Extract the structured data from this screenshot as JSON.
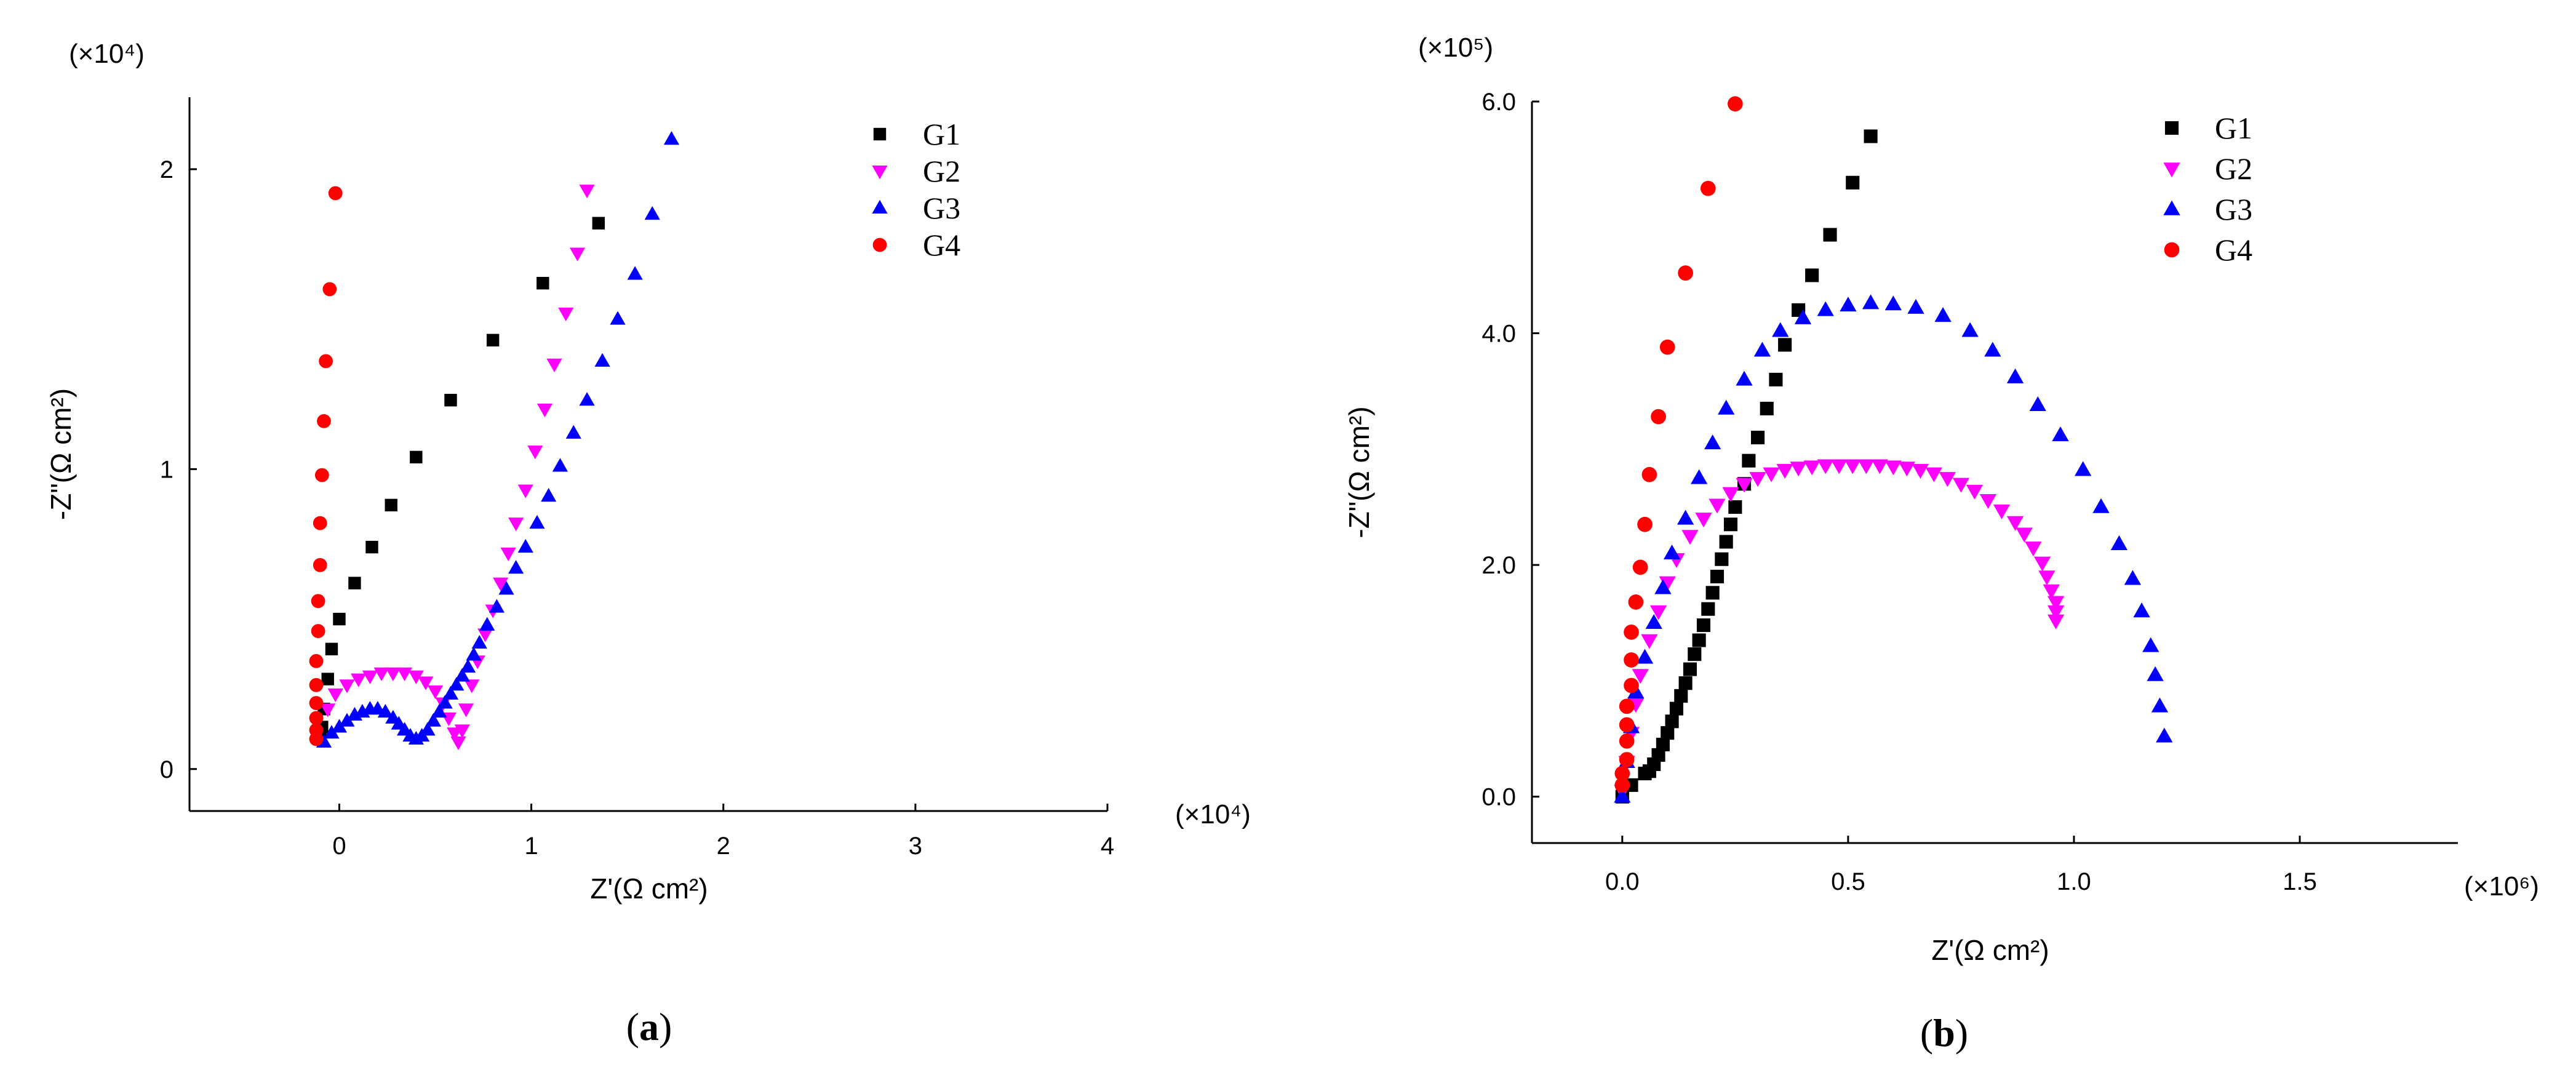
{
  "chart_data": [
    {
      "type": "scatter",
      "title": "",
      "caption": "(a)",
      "caption_letter": "a",
      "xlabel": "Z'(Ω cm²)",
      "ylabel": "-Z\"(Ω cm²)",
      "x_multiplier": "(×10⁴)",
      "y_multiplier": "(×10⁴)",
      "xlim": [
        -0.78,
        4.0
      ],
      "ylim": [
        -0.14,
        2.24
      ],
      "x_ticks": [
        0,
        1,
        2,
        3,
        4
      ],
      "x_tick_labels": [
        "0",
        "1",
        "2",
        "3",
        "4"
      ],
      "y_ticks": [
        0,
        1,
        2
      ],
      "y_tick_labels": [
        "0",
        "1",
        "2"
      ],
      "grid": false,
      "legend_position": "top-right",
      "series": [
        {
          "name": "G1",
          "marker": "square",
          "color": "#000000",
          "x": [
            -0.1,
            -0.09,
            -0.08,
            -0.06,
            -0.04,
            0.0,
            0.08,
            0.17,
            0.27,
            0.4,
            0.58,
            0.8,
            1.06,
            1.35
          ],
          "y": [
            0.1,
            0.14,
            0.2,
            0.3,
            0.4,
            0.5,
            0.62,
            0.74,
            0.88,
            1.04,
            1.23,
            1.43,
            1.62,
            1.82
          ]
        },
        {
          "name": "G2",
          "marker": "triangle-down",
          "color": "#ff00ff",
          "x": [
            -0.06,
            -0.02,
            0.04,
            0.1,
            0.16,
            0.22,
            0.28,
            0.34,
            0.4,
            0.45,
            0.5,
            0.54,
            0.57,
            0.6,
            0.62,
            0.64,
            0.66,
            0.69,
            0.72,
            0.76,
            0.8,
            0.84,
            0.88,
            0.92,
            0.97,
            1.02,
            1.07,
            1.12,
            1.18,
            1.24,
            1.29
          ],
          "y": [
            0.2,
            0.25,
            0.28,
            0.3,
            0.31,
            0.32,
            0.32,
            0.32,
            0.31,
            0.29,
            0.26,
            0.22,
            0.17,
            0.12,
            0.09,
            0.13,
            0.2,
            0.28,
            0.36,
            0.45,
            0.53,
            0.62,
            0.72,
            0.82,
            0.93,
            1.06,
            1.2,
            1.35,
            1.52,
            1.72,
            1.93
          ]
        },
        {
          "name": "G3",
          "marker": "triangle-up",
          "color": "#0000ff",
          "x": [
            -0.08,
            -0.04,
            0.0,
            0.04,
            0.08,
            0.12,
            0.16,
            0.2,
            0.24,
            0.28,
            0.31,
            0.34,
            0.37,
            0.4,
            0.43,
            0.46,
            0.49,
            0.52,
            0.55,
            0.58,
            0.61,
            0.64,
            0.67,
            0.7,
            0.73,
            0.77,
            0.82,
            0.87,
            0.92,
            0.97,
            1.03,
            1.09,
            1.15,
            1.22,
            1.29,
            1.37,
            1.45,
            1.54,
            1.63,
            1.73
          ],
          "y": [
            0.09,
            0.12,
            0.14,
            0.16,
            0.18,
            0.19,
            0.2,
            0.2,
            0.19,
            0.17,
            0.15,
            0.13,
            0.11,
            0.1,
            0.11,
            0.13,
            0.16,
            0.19,
            0.22,
            0.25,
            0.28,
            0.31,
            0.34,
            0.38,
            0.42,
            0.48,
            0.54,
            0.6,
            0.67,
            0.74,
            0.82,
            0.91,
            1.01,
            1.12,
            1.23,
            1.36,
            1.5,
            1.65,
            1.85,
            2.1
          ]
        },
        {
          "name": "G4",
          "marker": "circle",
          "color": "#ff0000",
          "x": [
            -0.12,
            -0.12,
            -0.12,
            -0.12,
            -0.12,
            -0.12,
            -0.11,
            -0.11,
            -0.1,
            -0.1,
            -0.09,
            -0.08,
            -0.07,
            -0.05,
            -0.02
          ],
          "y": [
            0.1,
            0.13,
            0.17,
            0.22,
            0.28,
            0.36,
            0.46,
            0.56,
            0.68,
            0.82,
            0.98,
            1.16,
            1.36,
            1.6,
            1.92
          ]
        }
      ]
    },
    {
      "type": "scatter",
      "title": "",
      "caption": "(b)",
      "caption_letter": "b",
      "xlabel": "Z'(Ω cm²)",
      "ylabel": "-Z\"(Ω cm²)",
      "x_multiplier": "(×10⁶)",
      "y_multiplier": "(×10⁵)",
      "xlim": [
        -0.2,
        1.85
      ],
      "ylim": [
        -0.4,
        6.0
      ],
      "x_ticks": [
        0.0,
        0.5,
        1.0,
        1.5
      ],
      "x_tick_labels": [
        "0.0",
        "0.5",
        "1.0",
        "1.5"
      ],
      "y_ticks": [
        0.0,
        2.0,
        4.0,
        6.0
      ],
      "y_tick_labels": [
        "0.0",
        "2.0",
        "4.0",
        "6.0"
      ],
      "grid": false,
      "legend_position": "top-right",
      "series": [
        {
          "name": "G1",
          "marker": "square",
          "color": "#000000",
          "x": [
            0.0,
            0.02,
            0.05,
            0.06,
            0.07,
            0.08,
            0.09,
            0.1,
            0.11,
            0.12,
            0.13,
            0.14,
            0.15,
            0.16,
            0.17,
            0.18,
            0.19,
            0.2,
            0.21,
            0.22,
            0.23,
            0.24,
            0.25,
            0.27,
            0.28,
            0.3,
            0.32,
            0.34,
            0.36,
            0.39,
            0.42,
            0.46,
            0.51,
            0.55
          ],
          "y": [
            0.0,
            0.1,
            0.2,
            0.22,
            0.28,
            0.36,
            0.45,
            0.55,
            0.65,
            0.76,
            0.87,
            0.98,
            1.1,
            1.23,
            1.35,
            1.48,
            1.62,
            1.76,
            1.9,
            2.05,
            2.2,
            2.35,
            2.5,
            2.7,
            2.9,
            3.1,
            3.35,
            3.6,
            3.9,
            4.2,
            4.5,
            4.85,
            5.3,
            5.7
          ]
        },
        {
          "name": "G2",
          "marker": "triangle-down",
          "color": "#ff00ff",
          "x": [
            0.0,
            0.01,
            0.02,
            0.03,
            0.04,
            0.06,
            0.08,
            0.1,
            0.12,
            0.15,
            0.18,
            0.21,
            0.24,
            0.27,
            0.3,
            0.33,
            0.36,
            0.39,
            0.42,
            0.45,
            0.48,
            0.51,
            0.54,
            0.57,
            0.6,
            0.63,
            0.66,
            0.69,
            0.72,
            0.75,
            0.78,
            0.81,
            0.84,
            0.87,
            0.89,
            0.91,
            0.93,
            0.94,
            0.95,
            0.96,
            0.96,
            0.96
          ],
          "y": [
            0.05,
            0.3,
            0.55,
            0.8,
            1.05,
            1.35,
            1.6,
            1.85,
            2.05,
            2.25,
            2.4,
            2.52,
            2.62,
            2.7,
            2.75,
            2.79,
            2.82,
            2.84,
            2.85,
            2.86,
            2.86,
            2.86,
            2.86,
            2.86,
            2.85,
            2.84,
            2.82,
            2.79,
            2.75,
            2.7,
            2.64,
            2.56,
            2.47,
            2.37,
            2.27,
            2.15,
            2.02,
            1.9,
            1.78,
            1.68,
            1.6,
            1.52
          ]
        },
        {
          "name": "G3",
          "marker": "triangle-up",
          "color": "#0000ff",
          "x": [
            0.0,
            0.01,
            0.02,
            0.03,
            0.05,
            0.07,
            0.09,
            0.11,
            0.14,
            0.17,
            0.2,
            0.23,
            0.27,
            0.31,
            0.35,
            0.4,
            0.45,
            0.5,
            0.55,
            0.6,
            0.65,
            0.71,
            0.77,
            0.82,
            0.87,
            0.92,
            0.97,
            1.02,
            1.06,
            1.1,
            1.13,
            1.15,
            1.17,
            1.18,
            1.19,
            1.2
          ],
          "y": [
            0.0,
            0.3,
            0.6,
            0.9,
            1.2,
            1.5,
            1.8,
            2.1,
            2.4,
            2.75,
            3.05,
            3.35,
            3.6,
            3.85,
            4.02,
            4.13,
            4.2,
            4.24,
            4.26,
            4.25,
            4.22,
            4.15,
            4.02,
            3.85,
            3.62,
            3.38,
            3.12,
            2.82,
            2.5,
            2.18,
            1.88,
            1.6,
            1.3,
            1.05,
            0.78,
            0.52
          ]
        },
        {
          "name": "G4",
          "marker": "circle",
          "color": "#ff0000",
          "x": [
            0.0,
            0.0,
            0.01,
            0.01,
            0.01,
            0.01,
            0.02,
            0.02,
            0.02,
            0.03,
            0.04,
            0.05,
            0.06,
            0.08,
            0.1,
            0.14,
            0.19,
            0.25
          ],
          "y": [
            0.1,
            0.2,
            0.32,
            0.48,
            0.62,
            0.78,
            0.96,
            1.18,
            1.42,
            1.68,
            1.98,
            2.35,
            2.78,
            3.28,
            3.88,
            4.52,
            5.25,
            5.98
          ]
        }
      ]
    }
  ]
}
